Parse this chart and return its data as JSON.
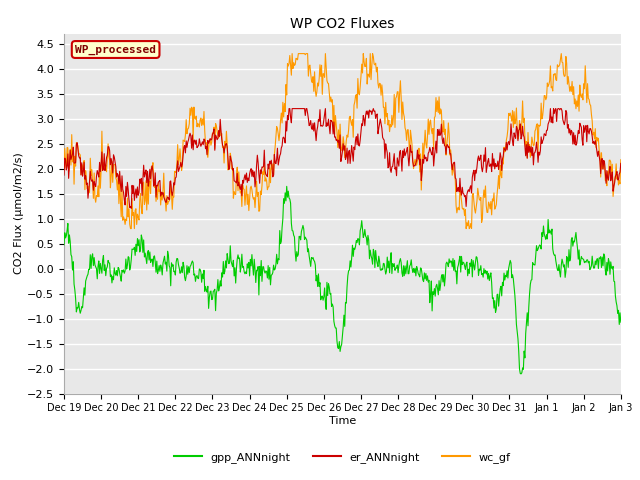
{
  "title": "WP CO2 Fluxes",
  "xlabel": "Time",
  "ylabel": "CO2 Flux (μmol/m2/s)",
  "ylim": [
    -2.5,
    4.7
  ],
  "yticks": [
    -2.5,
    -2.0,
    -1.5,
    -1.0,
    -0.5,
    0.0,
    0.5,
    1.0,
    1.5,
    2.0,
    2.5,
    3.0,
    3.5,
    4.0,
    4.5
  ],
  "bg_color": "#e8e8e8",
  "grid_color": "white",
  "legend_label": "WP_processed",
  "legend_box_facecolor": "#ffffcc",
  "legend_box_edgecolor": "#cc0000",
  "legend_text_color": "#800000",
  "line_gpp_color": "#00cc00",
  "line_er_color": "#cc0000",
  "line_wc_color": "#ff9900",
  "line_width": 0.8,
  "tick_labels": [
    "Dec 19",
    "Dec 20",
    "Dec 21",
    "Dec 22",
    "Dec 23",
    "Dec 24",
    "Dec 25",
    "Dec 26",
    "Dec 27",
    "Dec 28",
    "Dec 29",
    "Dec 30",
    "Dec 31",
    "Jan 1",
    "Jan 2",
    "Jan 3"
  ],
  "tick_positions": [
    0,
    48,
    96,
    144,
    192,
    240,
    288,
    336,
    384,
    432,
    480,
    528,
    576,
    624,
    672,
    720
  ]
}
